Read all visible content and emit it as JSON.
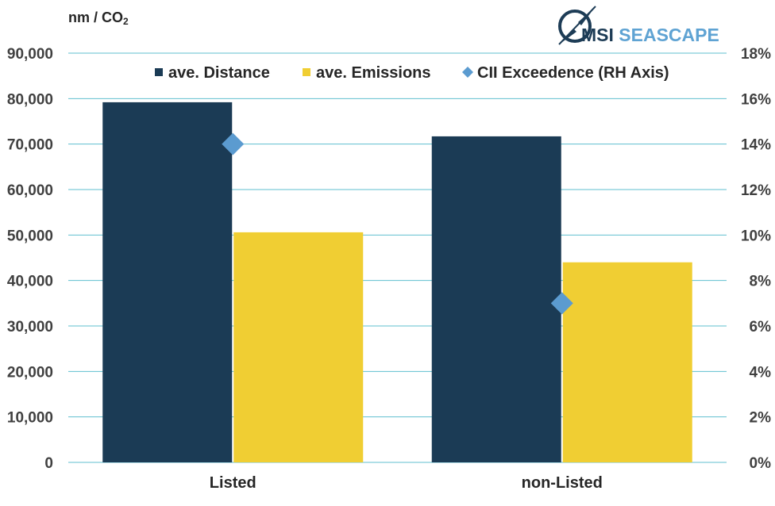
{
  "unit_label": {
    "prefix": "nm / CO",
    "subscript": "2"
  },
  "logo": {
    "brand": "MSI",
    "name": "SEASCAPE"
  },
  "colors": {
    "distance": "#1b3b55",
    "emissions": "#f0ce33",
    "cii": "#5b9bd0",
    "grid": "#5fbfcf"
  },
  "chart_data": {
    "type": "bar",
    "categories": [
      "Listed",
      "non-Listed"
    ],
    "series": [
      {
        "name": "ave. Distance",
        "axis": "left",
        "marker": "■",
        "values": [
          79200,
          71700
        ]
      },
      {
        "name": "ave. Emissions",
        "axis": "left",
        "marker": "■",
        "values": [
          50600,
          44000
        ]
      },
      {
        "name": "CII Exceedence (RH Axis)",
        "axis": "right",
        "marker": "◆",
        "kind": "point",
        "values": [
          14,
          7
        ]
      }
    ],
    "y_left": {
      "ylim": [
        0,
        90000
      ],
      "ticks": [
        "0",
        "10,000",
        "20,000",
        "30,000",
        "40,000",
        "50,000",
        "60,000",
        "70,000",
        "80,000",
        "90,000"
      ]
    },
    "y_right": {
      "ylim": [
        0,
        18
      ],
      "ticks": [
        "0%",
        "2%",
        "4%",
        "6%",
        "8%",
        "10%",
        "12%",
        "14%",
        "16%",
        "18%"
      ]
    },
    "grid": true,
    "legend_position": "top"
  }
}
